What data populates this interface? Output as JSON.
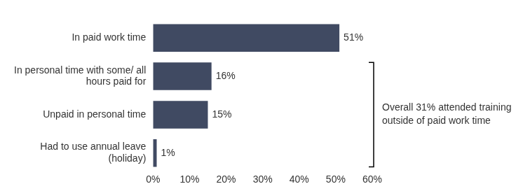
{
  "chart_data": {
    "type": "bar",
    "orientation": "horizontal",
    "categories": [
      "In paid work time",
      "In personal time with some/ all hours paid for",
      "Unpaid in personal time",
      "Had to use annual leave (holiday)"
    ],
    "values": [
      51,
      16,
      15,
      1
    ],
    "value_labels": [
      "51%",
      "16%",
      "15%",
      "1%"
    ],
    "data_labels": true,
    "color": "#404a62",
    "xlim": [
      0,
      60
    ],
    "xticks": [
      {
        "value": 0,
        "label": "0%"
      },
      {
        "value": 10,
        "label": "10%"
      },
      {
        "value": 20,
        "label": "20%"
      },
      {
        "value": 30,
        "label": "30%"
      },
      {
        "value": 40,
        "label": "40%"
      },
      {
        "value": 50,
        "label": "50%"
      },
      {
        "value": 60,
        "label": "60%"
      }
    ],
    "grid": false,
    "annotations": [
      {
        "text": "Overall 31% attended training outside of paid work time",
        "span": [
          "In personal time with some/ all hours paid for",
          "Had to use annual leave (holiday)"
        ]
      }
    ]
  }
}
